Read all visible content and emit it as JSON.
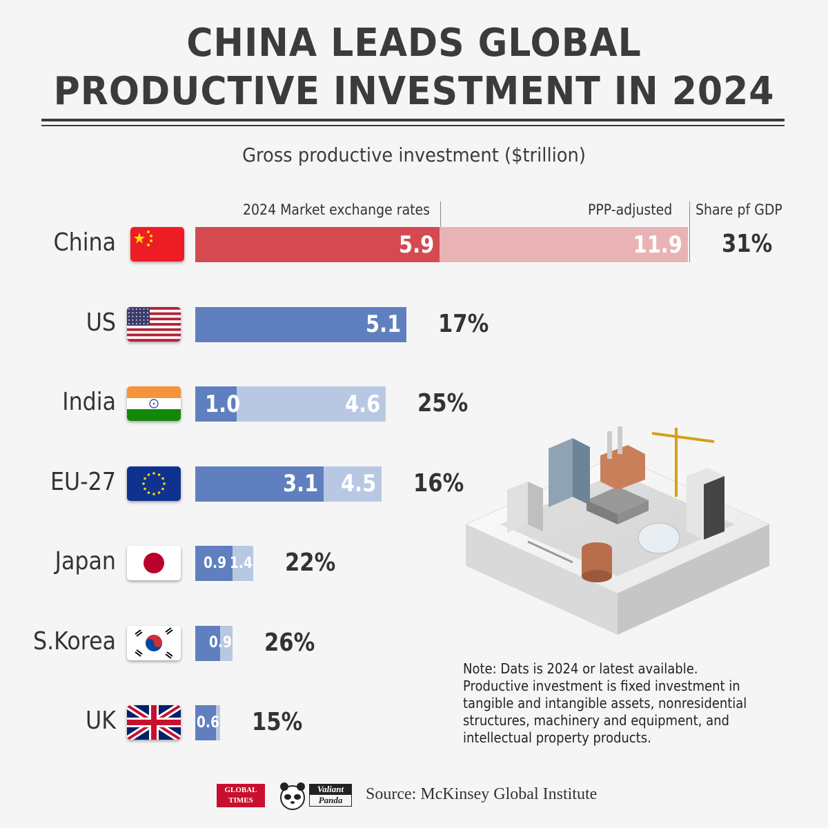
{
  "title_line1": "CHINA LEADS GLOBAL",
  "title_line2": "PRODUCTIVE INVESTMENT IN 2024",
  "chart_data": {
    "type": "bar",
    "orientation": "horizontal",
    "stacked_overlay": true,
    "title": "Gross productive investment ($trillion)",
    "columns": [
      "2024 Market exchange rates",
      "PPP-adjusted",
      "Share pf GDP"
    ],
    "categories": [
      "China",
      "US",
      "India",
      "EU-27",
      "Japan",
      "S.Korea",
      "UK"
    ],
    "series": [
      {
        "name": "2024 Market exchange rates",
        "values": [
          5.9,
          5.1,
          1.0,
          3.1,
          0.9,
          0.6,
          0.5
        ]
      },
      {
        "name": "PPP-adjusted",
        "values": [
          11.9,
          null,
          4.6,
          4.5,
          1.4,
          0.9,
          0.6
        ]
      }
    ],
    "labels_market": [
      "5.9",
      "5.1",
      "1.0",
      "3.1",
      "0.9",
      "",
      ""
    ],
    "labels_ppp": [
      "11.9",
      "",
      "4.6",
      "4.5",
      "1.4",
      "0.9",
      "0.6"
    ],
    "share_of_gdp": [
      "31%",
      "17%",
      "25%",
      "16%",
      "22%",
      "26%",
      "15%"
    ],
    "colors": {
      "china_market": "#d44a50",
      "china_ppp": "#e9b3b6",
      "market": "#5f7fbf",
      "ppp": "#b9c8e2"
    },
    "flags": [
      "china-flag",
      "us-flag",
      "india-flag",
      "eu-flag",
      "japan-flag",
      "south-korea-flag",
      "uk-flag"
    ]
  },
  "note": "Note: Dats is 2024 or latest available. Productive investment is fixed investment in tangible and intangible assets, nonresidential structures, machinery and equipment, and intellectual property products.",
  "logos": {
    "global_times": "GLOBAL TIMES",
    "valiant_top": "Valiant",
    "valiant_bottom": "Panda"
  },
  "source": "Source: McKinsey Global Institute"
}
